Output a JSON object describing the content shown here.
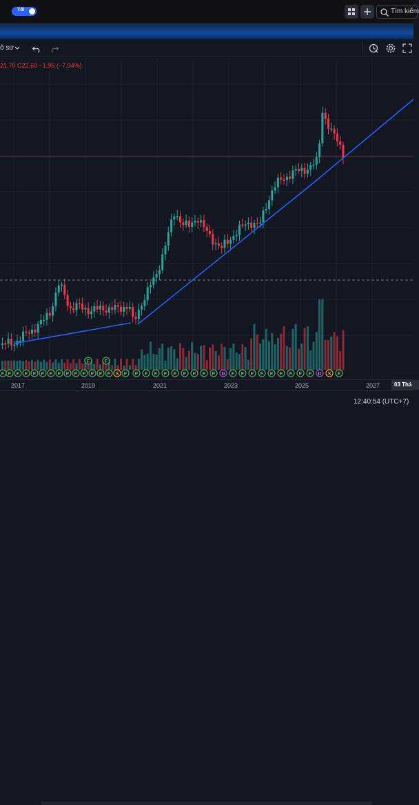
{
  "header": {
    "theme_toggle_label": "Tối",
    "search_placeholder": "Tìm kiếm"
  },
  "toolbar": {
    "chart_type_label": "ô sơ"
  },
  "legend": {
    "text": "21.70  C22.60  −1.95 (−7.94%)"
  },
  "axis": {
    "labels": [
      "2017",
      "2019",
      "2021",
      "2023",
      "2025",
      "2027"
    ],
    "current_date": "03 Thá"
  },
  "status": {
    "clock": "12:40:54 (UTC+7)"
  },
  "colors": {
    "up": "#26a69a",
    "down": "#f23645",
    "trendline": "#2962ff",
    "background": "#131722"
  },
  "event_markers": [
    "F",
    "F",
    "F",
    "F",
    "F",
    "F",
    "F",
    "F",
    "F",
    "F",
    "F",
    "F",
    "F",
    "F",
    "S",
    "F",
    "F",
    "F",
    "F",
    "F",
    "F",
    "F",
    "F",
    "F",
    "F",
    "D",
    "F",
    "F",
    "F",
    "F",
    "F",
    "F",
    "F",
    "F",
    "F",
    "D",
    "S",
    "F",
    "F",
    "F"
  ]
}
